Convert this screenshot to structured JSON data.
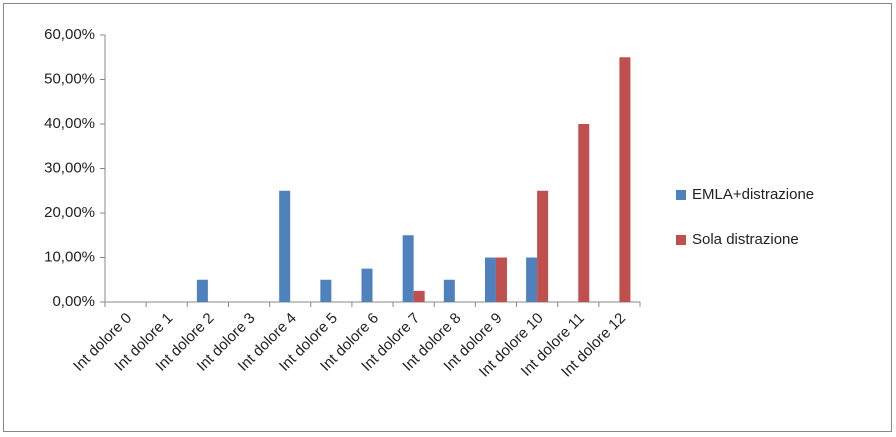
{
  "chart_data": {
    "type": "bar",
    "categories": [
      "Int dolore 0",
      "Int dolore 1",
      "Int dolore 2",
      "Int dolore 3",
      "Int dolore 4",
      "Int dolore 5",
      "Int dolore 6",
      "Int dolore 7",
      "Int dolore 8",
      "Int dolore 9",
      "Int dolore 10",
      "Int dolore 11",
      "Int dolore 12"
    ],
    "series": [
      {
        "name": "EMLA+distrazione",
        "color": "#4f81bd",
        "values": [
          0,
          0,
          5,
          0,
          25,
          5,
          7.5,
          15,
          5,
          10,
          10,
          0,
          0
        ]
      },
      {
        "name": "Sola distrazione",
        "color": "#c0504d",
        "values": [
          0,
          0,
          0,
          0,
          0,
          0,
          0,
          2.5,
          0,
          10,
          25,
          40,
          55
        ]
      }
    ],
    "ylim": [
      0,
      60
    ],
    "yticks": [
      {
        "value": 0,
        "label": "0,00%"
      },
      {
        "value": 10,
        "label": "10,00%"
      },
      {
        "value": 20,
        "label": "20,00%"
      },
      {
        "value": 30,
        "label": "30,00%"
      },
      {
        "value": 40,
        "label": "40,00%"
      },
      {
        "value": 50,
        "label": "50,00%"
      },
      {
        "value": 60,
        "label": "60,00%"
      }
    ],
    "grid": false,
    "legend": "right"
  }
}
